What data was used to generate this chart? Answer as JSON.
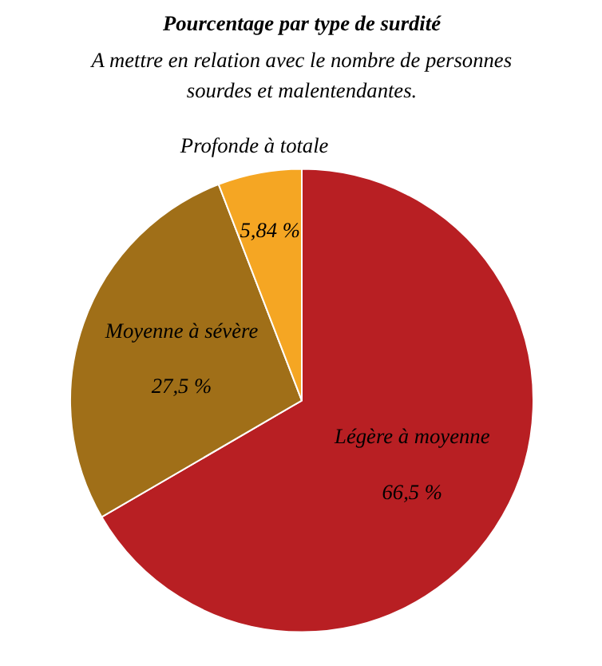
{
  "chart_data": {
    "type": "pie",
    "title": "Pourcentage par type de surdité",
    "subtitle": "A mettre en relation avec le nombre de personnes sourdes et malentendantes.",
    "categories": [
      "Légère à moyenne",
      "Moyenne à sévère",
      "Profonde à totale"
    ],
    "values": [
      66.5,
      27.5,
      5.84
    ],
    "value_labels": [
      "66,5 %",
      "27,5 %",
      "5,84 %"
    ],
    "colors": [
      "#b81f23",
      "#a06f18",
      "#f5a623"
    ]
  }
}
